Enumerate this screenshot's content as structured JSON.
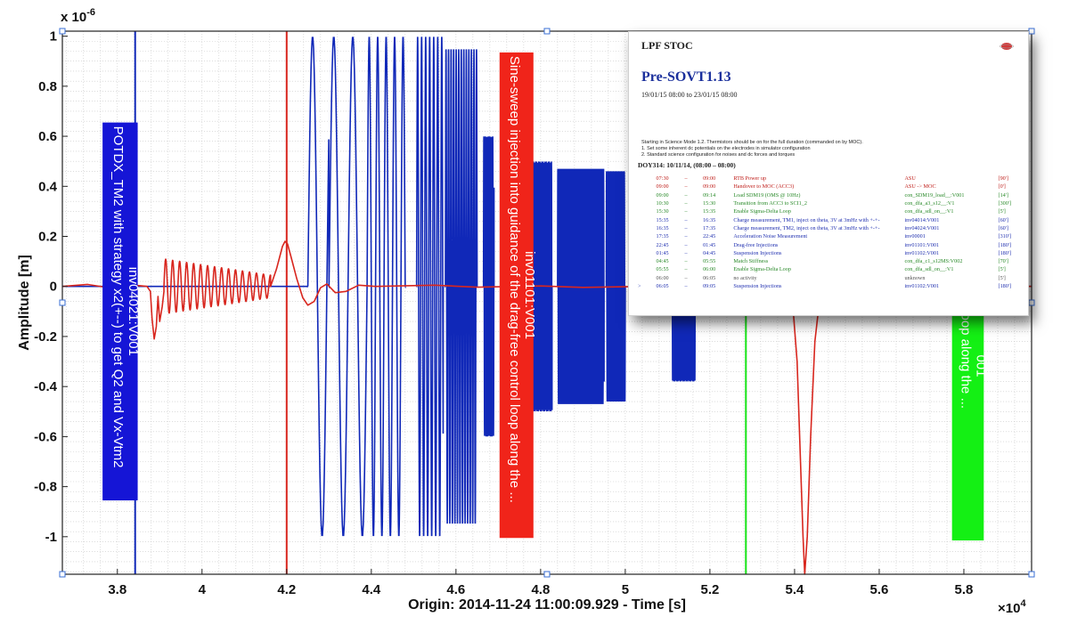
{
  "colors": {
    "blue": "#1028b8",
    "red": "#d8261e",
    "green": "#18e418",
    "annot_blue": "#1515d6",
    "annot_red": "#f0241a",
    "annot_green": "#14f014"
  },
  "chart_data": {
    "type": "line",
    "title": "",
    "xlabel": "Origin: 2014-11-24 11:00:09.929 - Time  [s]",
    "ylabel": "Amplitude  [m]",
    "x_exponent_label": "×10",
    "x_exponent_power": "4",
    "y_exponent_label": "x 10",
    "y_exponent_power": "-6",
    "xlim": [
      36700,
      59600
    ],
    "ylim": [
      -1.15,
      1.02
    ],
    "grid": "on (minor)",
    "xticks": [
      {
        "value": 38000,
        "label": "3.8"
      },
      {
        "value": 40000,
        "label": "4"
      },
      {
        "value": 42000,
        "label": "4.2"
      },
      {
        "value": 44000,
        "label": "4.4"
      },
      {
        "value": 46000,
        "label": "4.6"
      },
      {
        "value": 48000,
        "label": "4.8"
      },
      {
        "value": 50000,
        "label": "5"
      },
      {
        "value": 52000,
        "label": "5.2"
      },
      {
        "value": 54000,
        "label": "5.4"
      },
      {
        "value": 56000,
        "label": "5.6"
      },
      {
        "value": 58000,
        "label": "5.8"
      }
    ],
    "yticks": [
      {
        "value": 1,
        "label": "1"
      },
      {
        "value": 0.8,
        "label": "0.8"
      },
      {
        "value": 0.6,
        "label": "0.6"
      },
      {
        "value": 0.4,
        "label": "0.4"
      },
      {
        "value": 0.2,
        "label": "0.2"
      },
      {
        "value": 0,
        "label": "0"
      },
      {
        "value": -0.2,
        "label": "-0.2"
      },
      {
        "value": -0.4,
        "label": "-0.4"
      },
      {
        "value": -0.6,
        "label": "-0.6"
      },
      {
        "value": -0.8,
        "label": "-0.8"
      },
      {
        "value": -1,
        "label": "-1"
      }
    ],
    "vertical_markers": [
      {
        "x": 38420,
        "color": "blue"
      },
      {
        "x": 42000,
        "color": "red"
      },
      {
        "x": 52850,
        "color": "green"
      }
    ],
    "series": [
      {
        "color": "blue",
        "segments": [
          {
            "kind": "sine",
            "start": 42500,
            "end": 43000,
            "amp": 1.0,
            "period": 450
          },
          {
            "kind": "sine",
            "start": 43000,
            "end": 43900,
            "amp": 1.0,
            "period": 450
          },
          {
            "kind": "sine",
            "start": 43900,
            "end": 44800,
            "amp": 1.0,
            "period": 200
          },
          {
            "kind": "sine",
            "start": 45070,
            "end": 45700,
            "amp": 1.0,
            "period": 95
          },
          {
            "kind": "sine",
            "start": 45750,
            "end": 46500,
            "amp": 0.95,
            "period": 60
          },
          {
            "kind": "sine",
            "start": 46650,
            "end": 46900,
            "amp": 0.6,
            "period": 35
          },
          {
            "kind": "sine",
            "start": 47650,
            "end": 48270,
            "amp": 0.5,
            "period": 25
          },
          {
            "kind": "sine",
            "start": 48400,
            "end": 49500,
            "amp": 0.47,
            "period": 30
          },
          {
            "kind": "sine",
            "start": 49550,
            "end": 50000,
            "amp": 0.46,
            "period": 30
          },
          {
            "kind": "sine",
            "start": 51100,
            "end": 51650,
            "amp": 0.38,
            "period": 25
          }
        ]
      },
      {
        "color": "red",
        "points": [
          [
            36700,
            0
          ],
          [
            37300,
            0.008
          ],
          [
            37900,
            -0.008
          ],
          [
            38400,
            0.005
          ],
          [
            38700,
            0.0
          ],
          [
            38780,
            -0.02
          ],
          [
            38820,
            -0.13
          ],
          [
            38870,
            -0.21
          ],
          [
            38920,
            -0.16
          ],
          [
            38960,
            -0.04
          ],
          [
            39000,
            -0.14
          ],
          [
            39060,
            -0.08
          ],
          [
            39100,
            -0.02
          ]
        ],
        "damped_sine": {
          "start": 39100,
          "end": 41620,
          "amp_start": 0.11,
          "amp_end": 0.045,
          "period": 165,
          "offset": 0.0
        },
        "tail_points": [
          [
            41620,
            0.0
          ],
          [
            41760,
            0.07
          ],
          [
            41900,
            0.16
          ],
          [
            41960,
            0.18
          ],
          [
            42020,
            0.17
          ],
          [
            42100,
            0.12
          ],
          [
            42240,
            0.03
          ],
          [
            42380,
            -0.045
          ],
          [
            42500,
            -0.075
          ],
          [
            42650,
            -0.06
          ],
          [
            42800,
            -0.005
          ],
          [
            42950,
            0.01
          ],
          [
            43150,
            -0.025
          ],
          [
            43400,
            -0.02
          ],
          [
            43700,
            0.005
          ],
          [
            44100,
            0.0
          ],
          [
            45500,
            0.005
          ],
          [
            46500,
            -0.003
          ],
          [
            48000,
            0.002
          ],
          [
            49000,
            -0.004
          ],
          [
            50500,
            0.0
          ],
          [
            52500,
            -0.003
          ],
          [
            53850,
            0.0
          ],
          [
            53960,
            -0.08
          ],
          [
            54060,
            -0.3
          ],
          [
            54140,
            -0.7
          ],
          [
            54200,
            -1.0
          ],
          [
            54240,
            -1.15
          ],
          [
            54300,
            -1.0
          ],
          [
            54380,
            -0.6
          ],
          [
            54480,
            -0.22
          ],
          [
            54600,
            -0.04
          ],
          [
            54800,
            0.0
          ],
          [
            56000,
            -0.003
          ],
          [
            57500,
            0.004
          ],
          [
            59600,
            0.0
          ]
        ]
      }
    ],
    "annotations": [
      {
        "color": "annot_blue",
        "x0": 37650,
        "x1": 38480,
        "y0": 0.655,
        "y1": -0.855,
        "text": "POTDX_TM2 with strategy x2(+--) to get Q2 and Vx-Vtm2",
        "text2": "inv04021:V001"
      },
      {
        "color": "annot_red",
        "x0": 47030,
        "x1": 47830,
        "y0": 0.935,
        "y1": -1.005,
        "text": "Sine-sweep injection into guidance of the drag-free control loop along the ...",
        "text2": "inv01101:V001"
      },
      {
        "color": "annot_green",
        "x0": 57720,
        "x1": 58470,
        "y0": 0.38,
        "y1": -1.015,
        "text": "suspension control loop along the ...",
        "text2": "001"
      }
    ]
  },
  "schedule": {
    "header": "LPF STOC",
    "title": "Pre-SOVT1.13",
    "dates": "19/01/15 08:00 to 23/01/15 08:00",
    "intro": "Starting in Science Mode 1.2. Thermistors should be on for the full duration (commanded on by MOC).\n1. Set some inherent dc potentials on the electrodes in simulator configuration\n2. Standard science configuration for noises and dc forces and torques",
    "doy": "DOY314: 10/11/14, (08:00 – 08:00)",
    "rows": [
      {
        "mark": "",
        "start": "07:30",
        "dash": "–",
        "end": "09:00",
        "activity": "RTB Power up",
        "id": "ASU",
        "dur": "[90']",
        "color": "#c0201c"
      },
      {
        "mark": "",
        "start": "09:00",
        "dash": "–",
        "end": "09:00",
        "activity": "Handover to MOC (ACC3)",
        "id": "ASU -> MOC",
        "dur": "[0']",
        "color": "#c0201c"
      },
      {
        "mark": "",
        "start": "09:00",
        "dash": "–",
        "end": "09:14",
        "activity": "Load SDM19 (OMS @ 10Hz)",
        "id": "con_SDM19_load__:V001",
        "dur": "[14']",
        "color": "#2a8a2a"
      },
      {
        "mark": "",
        "start": "10:30",
        "dash": "–",
        "end": "15:30",
        "activity": "Transition from ACC3 to SCI1_2",
        "id": "con_dfa_a3_s12__:V1",
        "dur": "[300']",
        "color": "#2a8a2a"
      },
      {
        "mark": "",
        "start": "15:30",
        "dash": "–",
        "end": "15:35",
        "activity": "Enable Sigma-Delta Loop",
        "id": "con_dfa_sdl_on__:V1",
        "dur": "[5']",
        "color": "#2a8a2a"
      },
      {
        "mark": "",
        "start": "15:35",
        "dash": "–",
        "end": "16:35",
        "activity": "Charge measurement, TM1, inject on theta, 3V at 3mHz with +-+-",
        "id": "inv04014:V001",
        "dur": "[60']",
        "color": "#2030b0"
      },
      {
        "mark": "",
        "start": "16:35",
        "dash": "–",
        "end": "17:35",
        "activity": "Charge measurement, TM2, inject on theta, 3V at 3mHz with +-+-",
        "id": "inv04024:V001",
        "dur": "[60']",
        "color": "#2030b0"
      },
      {
        "mark": "",
        "start": "17:35",
        "dash": "–",
        "end": "22:45",
        "activity": "Acceleration Noise Measurement",
        "id": "inv00001",
        "dur": "[310']",
        "color": "#2030b0"
      },
      {
        "mark": "",
        "start": "22:45",
        "dash": "–",
        "end": "01:45",
        "activity": "Drag-free Injections",
        "id": "inv01101:V001",
        "dur": "[180']",
        "color": "#2030b0"
      },
      {
        "mark": "",
        "start": "01:45",
        "dash": "–",
        "end": "04:45",
        "activity": "Suspension Injections",
        "id": "inv01102:V001",
        "dur": "[180']",
        "color": "#2030b0"
      },
      {
        "mark": "",
        "start": "04:45",
        "dash": "–",
        "end": "05:55",
        "activity": "Match Stiffness",
        "id": "con_dfa_c1_s12MS:V002",
        "dur": "[70']",
        "color": "#2a8a2a"
      },
      {
        "mark": "",
        "start": "05:55",
        "dash": "–",
        "end": "06:00",
        "activity": "Enable Sigma-Delta Loop",
        "id": "con_dfa_sdl_on__:V1",
        "dur": "[5']",
        "color": "#2a8a2a"
      },
      {
        "mark": "",
        "start": "06:00",
        "dash": "–",
        "end": "06:05",
        "activity": "no activity",
        "id": "unknown",
        "dur": "[5']",
        "color": "#555555"
      },
      {
        "mark": ">",
        "start": "06:05",
        "dash": "–",
        "end": "09:05",
        "activity": "Suspension Injections",
        "id": "inv01102:V001",
        "dur": "[180']",
        "color": "#2030b0"
      }
    ]
  }
}
